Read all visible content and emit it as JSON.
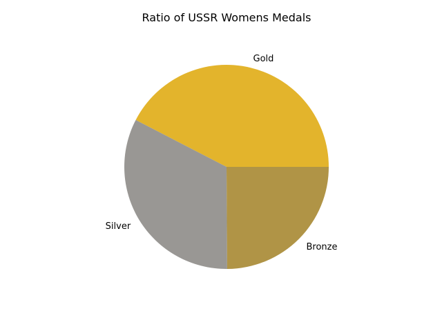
{
  "chart_data": {
    "type": "pie",
    "title": "Ratio of USSR Womens Medals",
    "slices": [
      {
        "label": "Gold",
        "value": 0.424,
        "color": "#e3b42c"
      },
      {
        "label": "Silver",
        "value": 0.327,
        "color": "#999794"
      },
      {
        "label": "Bronze",
        "value": 0.249,
        "color": "#b09446"
      }
    ],
    "start_angle_deg": 0,
    "direction": "counterclockwise",
    "legend": "none"
  }
}
